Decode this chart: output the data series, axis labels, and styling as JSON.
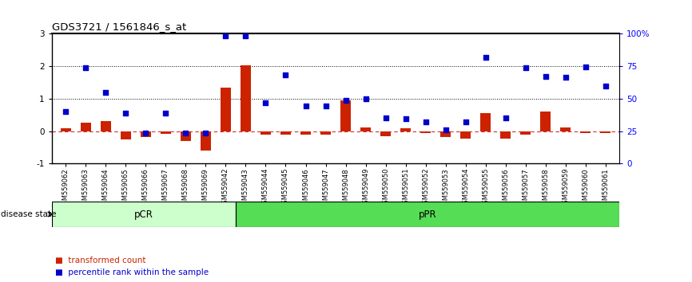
{
  "title": "GDS3721 / 1561846_s_at",
  "samples": [
    "GSM559062",
    "GSM559063",
    "GSM559064",
    "GSM559065",
    "GSM559066",
    "GSM559067",
    "GSM559068",
    "GSM559069",
    "GSM559042",
    "GSM559043",
    "GSM559044",
    "GSM559045",
    "GSM559046",
    "GSM559047",
    "GSM559048",
    "GSM559049",
    "GSM559050",
    "GSM559051",
    "GSM559052",
    "GSM559053",
    "GSM559054",
    "GSM559055",
    "GSM559056",
    "GSM559057",
    "GSM559058",
    "GSM559059",
    "GSM559060",
    "GSM559061"
  ],
  "transformed_count": [
    0.1,
    0.25,
    0.3,
    -0.25,
    -0.18,
    -0.08,
    -0.3,
    -0.6,
    1.35,
    2.02,
    -0.12,
    -0.1,
    -0.12,
    -0.1,
    0.95,
    0.12,
    -0.15,
    0.08,
    -0.05,
    -0.18,
    -0.22,
    0.55,
    -0.22,
    -0.12,
    0.6,
    0.12,
    -0.05,
    -0.05
  ],
  "percentile_rank": [
    0.6,
    1.95,
    1.2,
    0.55,
    -0.05,
    0.55,
    -0.05,
    -0.05,
    2.93,
    2.93,
    0.88,
    1.73,
    0.78,
    0.78,
    0.95,
    1.0,
    0.42,
    0.38,
    0.28,
    0.03,
    0.28,
    2.28,
    0.42,
    1.95,
    1.68,
    1.65,
    1.98,
    1.4
  ],
  "pCR_count": 9,
  "pPR_count": 19,
  "ylim": [
    -1,
    3
  ],
  "bar_color": "#cc2200",
  "dot_color": "#0000cc",
  "pCR_bg": "#ccffcc",
  "pPR_bg": "#55dd55",
  "label_bar": "transformed count",
  "label_dot": "percentile rank within the sample",
  "background_color": "#ffffff"
}
